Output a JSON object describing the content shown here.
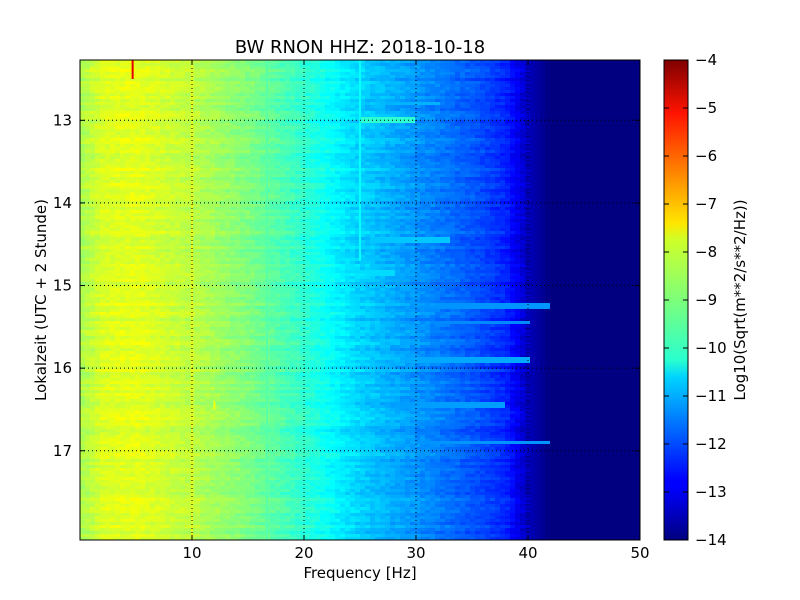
{
  "chart_data": {
    "type": "heatmap",
    "title": "BW RNON HHZ: 2018-10-18",
    "xlabel": "Frequency [Hz]",
    "ylabel": "Lokalzeit (UTC + 2 Stunde)",
    "xlim": [
      0,
      50
    ],
    "ylim": [
      12.27,
      18.08
    ],
    "x_ticks": [
      "10",
      "20",
      "30",
      "40",
      "50"
    ],
    "x_tick_values": [
      10,
      20,
      30,
      40,
      50
    ],
    "y_ticks": [
      "13",
      "14",
      "15",
      "16",
      "17"
    ],
    "y_tick_values": [
      13,
      14,
      15,
      16,
      17
    ],
    "grid": true,
    "y_inverted": true,
    "colormap": "jet",
    "colorbar": {
      "label": "Log10(Sqrt(m**2/s**2/Hz))",
      "range": [
        -14,
        -4
      ],
      "ticks": [
        "−4",
        "−5",
        "−6",
        "−7",
        "−8",
        "−9",
        "−10",
        "−11",
        "−12",
        "−13",
        "−14"
      ],
      "tick_values": [
        -4,
        -5,
        -6,
        -7,
        -8,
        -9,
        -10,
        -11,
        -12,
        -13,
        -14
      ]
    },
    "spectrum_profile": {
      "frequency_hz": [
        0,
        2,
        5,
        10,
        15,
        20,
        25,
        30,
        35,
        38,
        40,
        42,
        50
      ],
      "log10_amplitude": [
        -8.6,
        -8.1,
        -8.0,
        -8.4,
        -9.0,
        -9.8,
        -10.7,
        -11.3,
        -11.9,
        -12.4,
        -13.4,
        -14.0,
        -14.0
      ]
    },
    "features": [
      {
        "frequency_hz": 16.7,
        "time_start": 12.27,
        "time_end": 18.08,
        "log10_amplitude": -9.4
      },
      {
        "frequency_hz": 25.0,
        "time_start": 12.27,
        "time_end": 14.7,
        "log10_amplitude": -10.2
      },
      {
        "frequency_hz": 10.0,
        "time_start": 12.27,
        "time_end": 18.08,
        "log10_amplitude": -8.0
      },
      {
        "frequency_hz": 4.7,
        "time_start": 12.27,
        "time_end": 12.5,
        "log10_amplitude": -5.0
      },
      {
        "frequency_hz": 12.0,
        "time_start": 16.4,
        "time_end": 16.5,
        "log10_amplitude": -7.8
      }
    ],
    "broadband_events": [
      {
        "time": 12.8,
        "f_min": 24,
        "f_max": 32,
        "log10_amplitude": -11.0
      },
      {
        "time": 13.0,
        "f_min": 25,
        "f_max": 30,
        "log10_amplitude": -9.8
      },
      {
        "time": 14.45,
        "f_min": 26,
        "f_max": 33,
        "log10_amplitude": -10.8
      },
      {
        "time": 14.85,
        "f_min": 20,
        "f_max": 28,
        "log10_amplitude": -10.6
      },
      {
        "time": 15.25,
        "f_min": 18,
        "f_max": 42,
        "log10_amplitude": -11.3
      },
      {
        "time": 15.45,
        "f_min": 20,
        "f_max": 40,
        "log10_amplitude": -11.4
      },
      {
        "time": 15.9,
        "f_min": 8,
        "f_max": 40,
        "log10_amplitude": -11.1
      },
      {
        "time": 16.45,
        "f_min": 6,
        "f_max": 38,
        "log10_amplitude": -11.2
      },
      {
        "time": 16.9,
        "f_min": 6,
        "f_max": 42,
        "log10_amplitude": -11.3
      }
    ]
  }
}
